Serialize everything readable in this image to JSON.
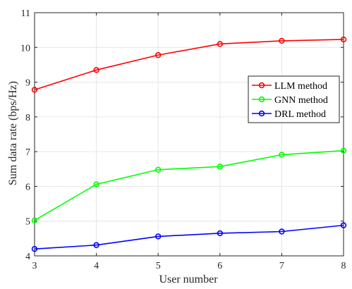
{
  "chart_data": {
    "type": "line",
    "title": "",
    "xlabel": "User number",
    "ylabel": "Sum data rate (bps/Hz)",
    "x": [
      3,
      4,
      5,
      6,
      7,
      8
    ],
    "xlim": [
      3,
      8
    ],
    "ylim": [
      4,
      11
    ],
    "xticks": [
      "3",
      "4",
      "5",
      "6",
      "7",
      "8"
    ],
    "yticks": [
      "4",
      "5",
      "6",
      "7",
      "8",
      "9",
      "10",
      "11"
    ],
    "grid": true,
    "legend_position": "right",
    "series": [
      {
        "name": "LLM method",
        "color": "#ff0000",
        "marker": "circle",
        "values": [
          8.78,
          9.35,
          9.78,
          10.1,
          10.19,
          10.23
        ]
      },
      {
        "name": "GNN method",
        "color": "#00ff00",
        "marker": "circle",
        "values": [
          5.02,
          6.06,
          6.48,
          6.57,
          6.91,
          7.03
        ]
      },
      {
        "name": "DRL method",
        "color": "#0000ff",
        "marker": "circle",
        "values": [
          4.2,
          4.31,
          4.56,
          4.65,
          4.7,
          4.88
        ]
      }
    ]
  }
}
